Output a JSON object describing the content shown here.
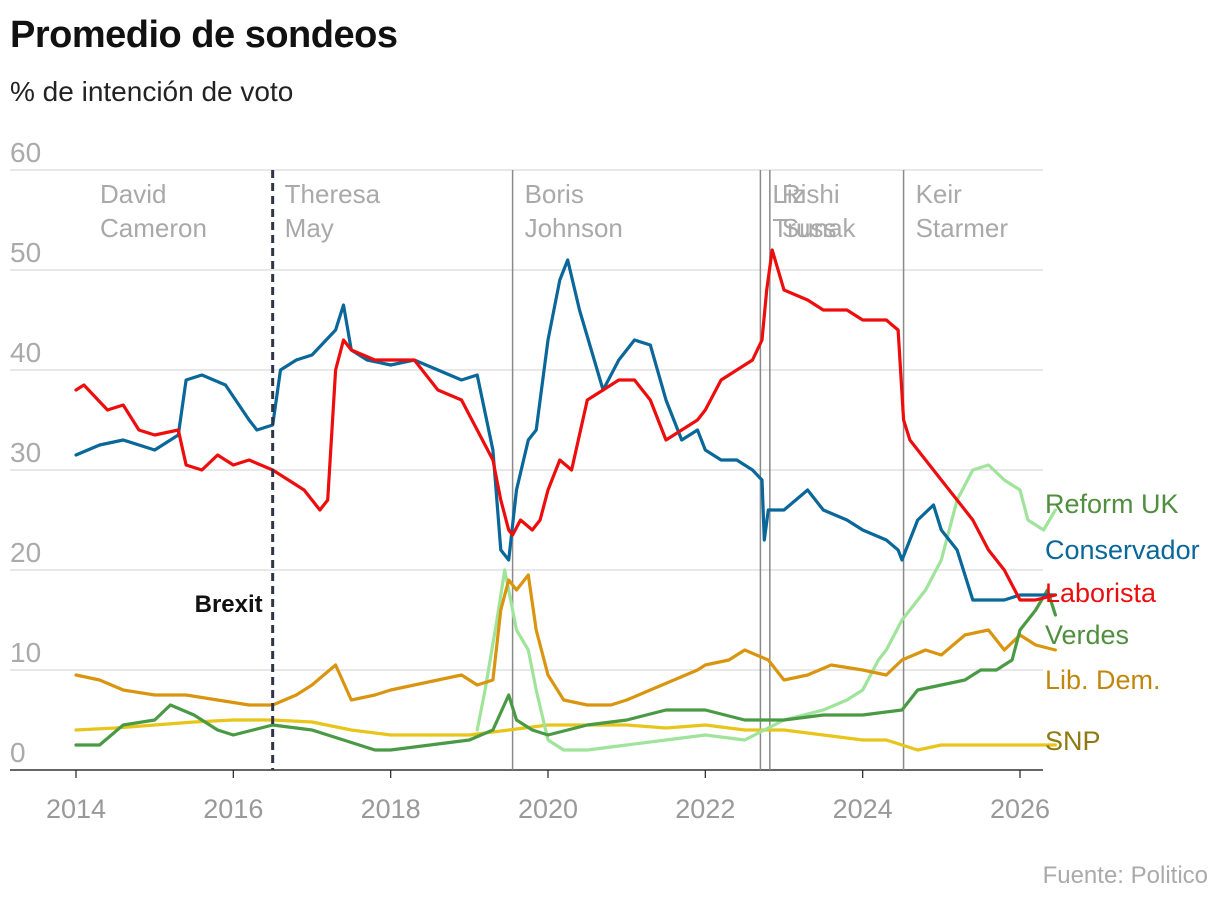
{
  "title": "Promedio de sondeos",
  "subtitle": "% de intención de voto",
  "source": "Fuente: Politico",
  "chart_data": {
    "type": "line",
    "title": "Promedio de sondeos",
    "ylabel": "% de intención de voto",
    "xlim": [
      2014.0,
      2026.5
    ],
    "ylim": [
      0,
      60
    ],
    "y_ticks": [
      0,
      10,
      20,
      30,
      40,
      50,
      60
    ],
    "x_ticks": [
      2014,
      2016,
      2018,
      2020,
      2022,
      2024,
      2026
    ],
    "grid": true,
    "legend": "right (inline labels at line ends)",
    "events": [
      {
        "label": "Brexit",
        "x": 2016.5,
        "style": "dashed"
      }
    ],
    "periods": [
      {
        "label": [
          "David",
          "Cameron"
        ],
        "start": 2014.0,
        "end": 2016.5
      },
      {
        "label": [
          "Theresa",
          "May"
        ],
        "start": 2016.5,
        "end": 2019.55
      },
      {
        "label": [
          "Boris",
          "Johnson"
        ],
        "start": 2019.55,
        "end": 2022.7
      },
      {
        "label": [
          "Liz",
          "Truss"
        ],
        "start": 2022.7,
        "end": 2022.82
      },
      {
        "label": [
          "Rishi",
          "Sunak"
        ],
        "start": 2022.82,
        "end": 2024.52
      },
      {
        "label": [
          "Keir",
          "Starmer"
        ],
        "start": 2024.52,
        "end": 2026.5
      }
    ],
    "series": [
      {
        "name": "Reform UK",
        "color": "#9fe49a",
        "label_color": "#4f8f3e",
        "x": [
          2019.1,
          2019.2,
          2019.35,
          2019.45,
          2019.5,
          2019.6,
          2019.75,
          2019.85,
          2020.0,
          2020.2,
          2020.5,
          2021.0,
          2021.5,
          2022.0,
          2022.5,
          2023.0,
          2023.5,
          2023.8,
          2024.0,
          2024.2,
          2024.3,
          2024.5,
          2024.6,
          2024.8,
          2025.0,
          2025.2,
          2025.4,
          2025.6,
          2025.8,
          2026.0,
          2026.1,
          2026.3,
          2026.45
        ],
        "y": [
          4,
          8,
          15,
          20,
          18,
          14,
          12,
          8,
          3,
          2,
          2,
          2.5,
          3,
          3.5,
          3,
          5,
          6,
          7,
          8,
          11,
          12,
          15,
          16,
          18,
          21,
          27,
          30,
          30.5,
          29,
          28,
          25,
          24,
          26
        ]
      },
      {
        "name": "Conservador",
        "color": "#0a6799",
        "label_color": "#0a6799",
        "x": [
          2014.0,
          2014.3,
          2014.6,
          2015.0,
          2015.3,
          2015.4,
          2015.6,
          2015.9,
          2016.2,
          2016.3,
          2016.5,
          2016.6,
          2016.8,
          2017.0,
          2017.3,
          2017.4,
          2017.5,
          2017.7,
          2018.0,
          2018.3,
          2018.6,
          2018.9,
          2019.1,
          2019.3,
          2019.4,
          2019.5,
          2019.6,
          2019.75,
          2019.85,
          2020.0,
          2020.15,
          2020.25,
          2020.4,
          2020.55,
          2020.7,
          2020.9,
          2021.1,
          2021.3,
          2021.5,
          2021.7,
          2021.9,
          2022.0,
          2022.2,
          2022.4,
          2022.6,
          2022.72,
          2022.75,
          2022.8,
          2023.0,
          2023.3,
          2023.5,
          2023.8,
          2024.0,
          2024.3,
          2024.45,
          2024.5,
          2024.7,
          2024.9,
          2025.0,
          2025.2,
          2025.4,
          2025.6,
          2025.8,
          2026.0,
          2026.2,
          2026.45
        ],
        "y": [
          31.5,
          32.5,
          33,
          32,
          33.5,
          39,
          39.5,
          38.5,
          35,
          34,
          34.5,
          40,
          41,
          41.5,
          44,
          46.5,
          42,
          41,
          40.5,
          41,
          40,
          39,
          39.5,
          32,
          22,
          21,
          28,
          33,
          34,
          43,
          49,
          51,
          46,
          42,
          38,
          41,
          43,
          42.5,
          37,
          33,
          34,
          32,
          31,
          31,
          30,
          29,
          23,
          26,
          26,
          28,
          26,
          25,
          24,
          23,
          22,
          21,
          25,
          26.5,
          24,
          22,
          17,
          17,
          17,
          17.5,
          17.5,
          17.5
        ]
      },
      {
        "name": "Laborista",
        "color": "#ee0d0d",
        "label_color": "#ee0d0d",
        "x": [
          2014.0,
          2014.1,
          2014.4,
          2014.6,
          2014.8,
          2015.0,
          2015.3,
          2015.4,
          2015.6,
          2015.8,
          2016.0,
          2016.2,
          2016.5,
          2016.7,
          2016.9,
          2017.0,
          2017.1,
          2017.2,
          2017.3,
          2017.4,
          2017.5,
          2017.8,
          2018.0,
          2018.3,
          2018.6,
          2018.9,
          2019.1,
          2019.3,
          2019.4,
          2019.5,
          2019.55,
          2019.65,
          2019.8,
          2019.9,
          2020.0,
          2020.15,
          2020.3,
          2020.5,
          2020.7,
          2020.9,
          2021.1,
          2021.3,
          2021.5,
          2021.7,
          2021.9,
          2022.0,
          2022.2,
          2022.4,
          2022.6,
          2022.72,
          2022.78,
          2022.85,
          2023.0,
          2023.3,
          2023.5,
          2023.8,
          2024.0,
          2024.3,
          2024.45,
          2024.52,
          2024.6,
          2024.8,
          2025.0,
          2025.2,
          2025.4,
          2025.6,
          2025.8,
          2026.0,
          2026.2,
          2026.45
        ],
        "y": [
          38,
          38.5,
          36,
          36.5,
          34,
          33.5,
          34,
          30.5,
          30,
          31.5,
          30.5,
          31,
          30,
          29,
          28,
          27,
          26,
          27,
          40,
          43,
          42,
          41,
          41,
          41,
          38,
          37,
          34,
          31,
          27,
          24,
          23.5,
          25,
          24,
          25,
          28,
          31,
          30,
          37,
          38,
          39,
          39,
          37,
          33,
          34,
          35,
          36,
          39,
          40,
          41,
          43,
          48,
          52,
          48,
          47,
          46,
          46,
          45,
          45,
          44,
          35,
          33,
          31,
          29,
          27,
          25,
          22,
          20,
          17,
          17,
          17.5
        ]
      },
      {
        "name": "Verdes",
        "color": "#4a9a45",
        "label_color": "#4f8f3e",
        "x": [
          2014.0,
          2014.3,
          2014.6,
          2015.0,
          2015.2,
          2015.5,
          2015.8,
          2016.0,
          2016.5,
          2017.0,
          2017.4,
          2017.8,
          2018.0,
          2018.5,
          2019.0,
          2019.3,
          2019.5,
          2019.6,
          2019.8,
          2020.0,
          2020.5,
          2021.0,
          2021.5,
          2022.0,
          2022.5,
          2023.0,
          2023.5,
          2024.0,
          2024.5,
          2024.7,
          2025.0,
          2025.3,
          2025.5,
          2025.7,
          2025.9,
          2026.0,
          2026.2,
          2026.35,
          2026.45
        ],
        "y": [
          2.5,
          2.5,
          4.5,
          5,
          6.5,
          5.5,
          4,
          3.5,
          4.5,
          4,
          3,
          2,
          2,
          2.5,
          3,
          4,
          7.5,
          5,
          4,
          3.5,
          4.5,
          5,
          6,
          6,
          5,
          5,
          5.5,
          5.5,
          6,
          8,
          8.5,
          9,
          10,
          10,
          11,
          14,
          16,
          18,
          15.5
        ]
      },
      {
        "name": "Lib. Dem.",
        "color": "#d9950f",
        "label_color": "#c0870f",
        "x": [
          2014.0,
          2014.3,
          2014.6,
          2015.0,
          2015.4,
          2015.8,
          2016.2,
          2016.5,
          2016.8,
          2017.0,
          2017.3,
          2017.5,
          2017.8,
          2018.0,
          2018.3,
          2018.6,
          2018.9,
          2019.1,
          2019.3,
          2019.4,
          2019.5,
          2019.6,
          2019.75,
          2019.85,
          2020.0,
          2020.2,
          2020.5,
          2020.8,
          2021.0,
          2021.3,
          2021.6,
          2021.9,
          2022.0,
          2022.3,
          2022.5,
          2022.8,
          2023.0,
          2023.3,
          2023.6,
          2024.0,
          2024.3,
          2024.5,
          2024.8,
          2025.0,
          2025.3,
          2025.6,
          2025.8,
          2026.0,
          2026.2,
          2026.45
        ],
        "y": [
          9.5,
          9,
          8,
          7.5,
          7.5,
          7,
          6.5,
          6.5,
          7.5,
          8.5,
          10.5,
          7,
          7.5,
          8,
          8.5,
          9,
          9.5,
          8.5,
          9,
          16,
          19,
          18,
          19.5,
          14,
          9.5,
          7,
          6.5,
          6.5,
          7,
          8,
          9,
          10,
          10.5,
          11,
          12,
          11,
          9,
          9.5,
          10.5,
          10,
          9.5,
          11,
          12,
          11.5,
          13.5,
          14,
          12,
          13.5,
          12.5,
          12
        ]
      },
      {
        "name": "SNP",
        "color": "#e8c51a",
        "label_color": "#8f7a12",
        "x": [
          2014.0,
          2014.5,
          2015.0,
          2015.5,
          2016.0,
          2016.5,
          2017.0,
          2017.5,
          2018.0,
          2018.5,
          2019.0,
          2019.5,
          2020.0,
          2020.5,
          2021.0,
          2021.5,
          2022.0,
          2022.5,
          2023.0,
          2023.5,
          2024.0,
          2024.3,
          2024.5,
          2024.7,
          2025.0,
          2025.5,
          2026.0,
          2026.45
        ],
        "y": [
          4,
          4.2,
          4.5,
          4.8,
          5,
          5,
          4.8,
          4,
          3.5,
          3.5,
          3.5,
          4,
          4.5,
          4.5,
          4.5,
          4.2,
          4.5,
          4,
          4,
          3.5,
          3,
          3,
          2.5,
          2,
          2.5,
          2.5,
          2.5,
          2.5
        ]
      }
    ]
  }
}
